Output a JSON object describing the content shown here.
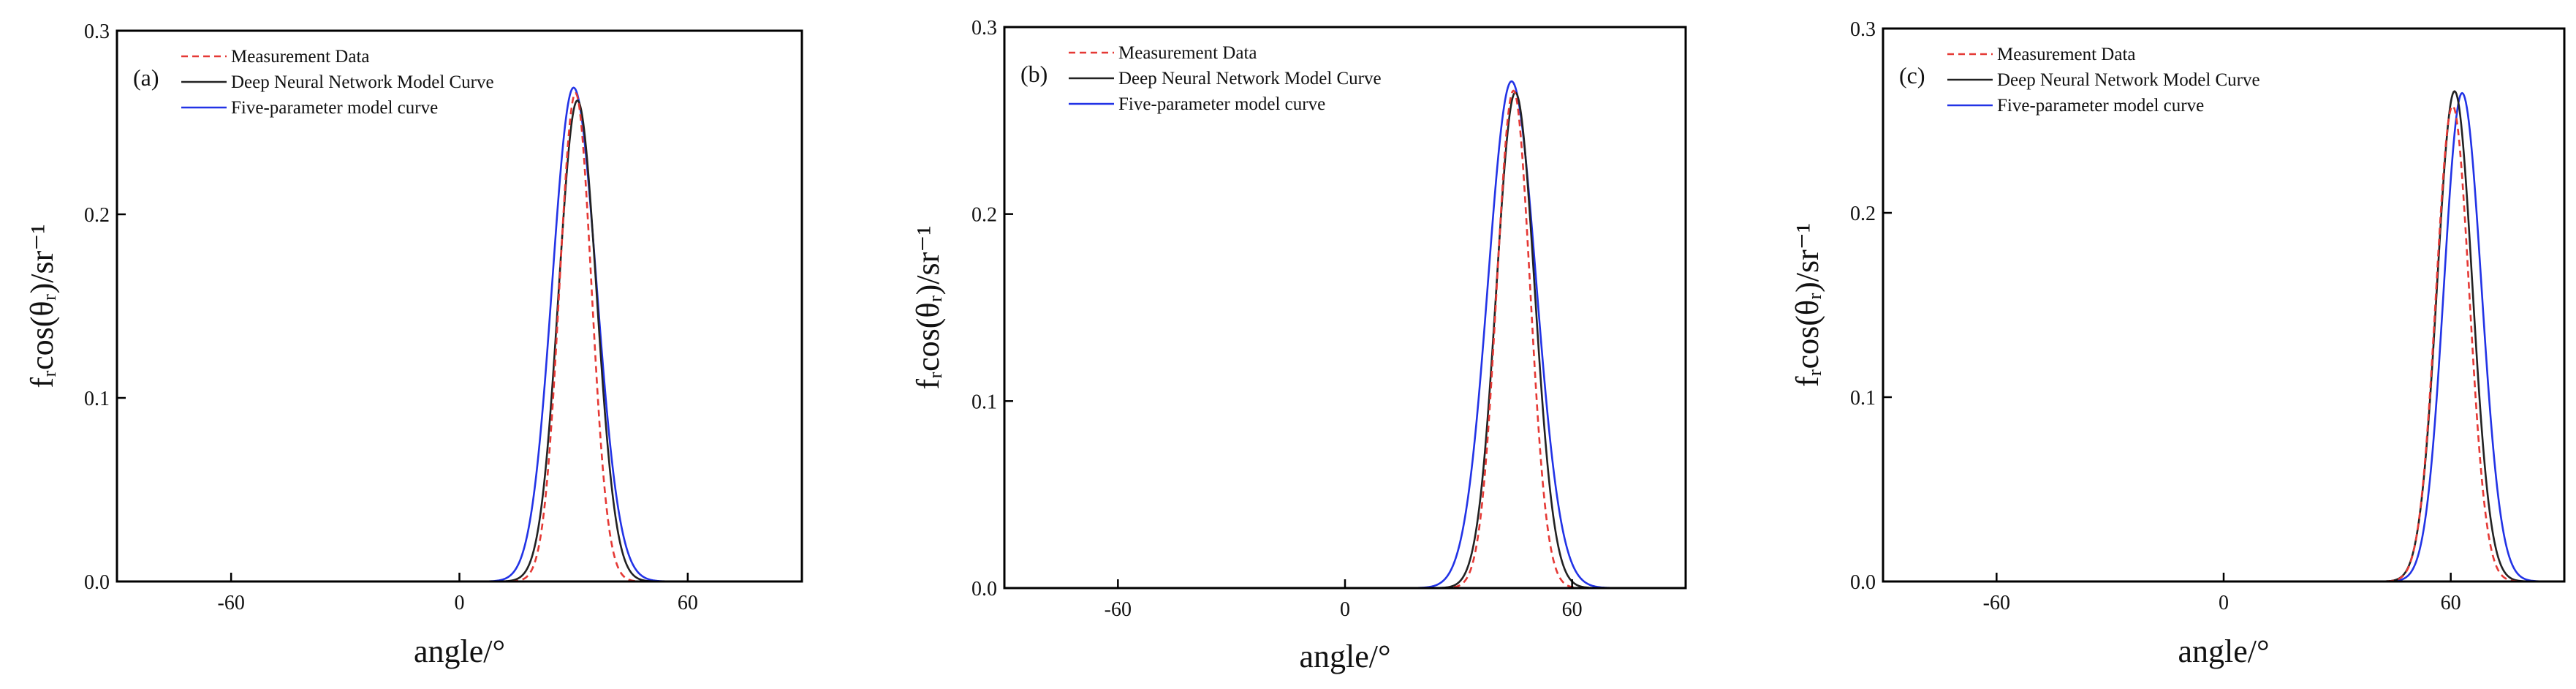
{
  "chart_data": [
    {
      "type": "line",
      "panel_label": "(a)",
      "xlabel": "angle/°",
      "ylabel": "fᵣcos(θᵣ)/sr⁻¹",
      "xlim": [
        -90,
        90
      ],
      "ylim": [
        0,
        0.3
      ],
      "xticks": [
        -60,
        0,
        60
      ],
      "xtick_labels": [
        "-60",
        "0",
        "60"
      ],
      "yticks": [
        0,
        0.1,
        0.2,
        0.3
      ],
      "ytick_labels": [
        "0.0",
        "0.1",
        "0.2",
        "0.3"
      ],
      "legend_position": "top-left",
      "series": [
        {
          "name": "Measurement Data",
          "color": "#e53935",
          "dash": "dashed",
          "peak_x": 30.5,
          "peak_y": 0.266,
          "sigma_left": 4.2,
          "sigma_right": 4.2,
          "sample_x": [
            0,
            10,
            20,
            25,
            28,
            30.5,
            33,
            36,
            41,
            51,
            60
          ],
          "sample_y": [
            0.0,
            0.0,
            0.016,
            0.131,
            0.235,
            0.266,
            0.222,
            0.119,
            0.009,
            0.0,
            0.0
          ]
        },
        {
          "name": "Deep Neural Network Model Curve",
          "color": "#222222",
          "dash": "solid",
          "peak_x": 31.0,
          "peak_y": 0.262,
          "sigma_left": 4.9,
          "sigma_right": 5.0,
          "sample_x": [
            0,
            10,
            20,
            25,
            28,
            31,
            34,
            37,
            42,
            51,
            60
          ],
          "sample_y": [
            0.0,
            0.0,
            0.026,
            0.124,
            0.216,
            0.262,
            0.218,
            0.126,
            0.025,
            0.0,
            0.0
          ]
        },
        {
          "name": "Five-parameter model curve",
          "color": "#2233e6",
          "dash": "solid",
          "peak_x": 30.0,
          "peak_y": 0.269,
          "sigma_left": 5.6,
          "sigma_right": 6.0,
          "sample_x": [
            0,
            10,
            20,
            24,
            27,
            30,
            33,
            36,
            42,
            52,
            60
          ],
          "sample_y": [
            0.0,
            0.0,
            0.056,
            0.151,
            0.232,
            0.269,
            0.237,
            0.163,
            0.036,
            0.0,
            0.0
          ]
        }
      ]
    },
    {
      "type": "line",
      "panel_label": "(b)",
      "xlabel": "angle/°",
      "ylabel": "fᵣcos(θᵣ)/sr⁻¹",
      "xlim": [
        -90,
        90
      ],
      "ylim": [
        0,
        0.3
      ],
      "xticks": [
        -60,
        0,
        60
      ],
      "xtick_labels": [
        "-60",
        "0",
        "60"
      ],
      "yticks": [
        0,
        0.1,
        0.2,
        0.3
      ],
      "ytick_labels": [
        "0.0",
        "0.1",
        "0.2",
        "0.3"
      ],
      "legend_position": "top-left",
      "series": [
        {
          "name": "Measurement Data",
          "color": "#e53935",
          "dash": "dashed",
          "peak_x": 44.5,
          "peak_y": 0.266,
          "sigma_left": 4.4,
          "sigma_right": 4.4,
          "sample_x": [
            0,
            20,
            32,
            38,
            42,
            44.5,
            47,
            51,
            57,
            66,
            90
          ],
          "sample_y": [
            0.0,
            0.0,
            0.005,
            0.089,
            0.226,
            0.266,
            0.226,
            0.089,
            0.005,
            0.0,
            0.0
          ]
        },
        {
          "name": "Deep Neural Network Model Curve",
          "color": "#222222",
          "dash": "solid",
          "peak_x": 45.0,
          "peak_y": 0.265,
          "sigma_left": 5.0,
          "sigma_right": 5.1,
          "sample_x": [
            0,
            20,
            32,
            38,
            42,
            45,
            48,
            52,
            58,
            68,
            90
          ],
          "sample_y": [
            0.0,
            0.0,
            0.009,
            0.109,
            0.222,
            0.265,
            0.223,
            0.104,
            0.01,
            0.0,
            0.0
          ]
        },
        {
          "name": "Five-parameter model curve",
          "color": "#2233e6",
          "dash": "solid",
          "peak_x": 44.0,
          "peak_y": 0.271,
          "sigma_left": 6.2,
          "sigma_right": 6.5,
          "sample_x": [
            0,
            20,
            30,
            36,
            41,
            44,
            47,
            52,
            58,
            70,
            90
          ],
          "sample_y": [
            0.0,
            0.001,
            0.021,
            0.117,
            0.241,
            0.271,
            0.243,
            0.127,
            0.026,
            0.0,
            0.0
          ]
        }
      ]
    },
    {
      "type": "line",
      "panel_label": "(c)",
      "xlabel": "angle/°",
      "ylabel": "fᵣcos(θᵣ)/sr⁻¹",
      "xlim": [
        -90,
        90
      ],
      "ylim": [
        0,
        0.3
      ],
      "xticks": [
        -60,
        0,
        60
      ],
      "xtick_labels": [
        "-60",
        "0",
        "60"
      ],
      "yticks": [
        0,
        0.1,
        0.2,
        0.3
      ],
      "ytick_labels": [
        "0.0",
        "0.1",
        "0.2",
        "0.3"
      ],
      "legend_position": "top-left",
      "series": [
        {
          "name": "Measurement Data",
          "color": "#e53935",
          "dash": "dashed",
          "peak_x": 60.5,
          "peak_y": 0.258,
          "sigma_left": 4.4,
          "sigma_right": 4.4,
          "sample_x": [
            30,
            45,
            50,
            55,
            58,
            60.5,
            63,
            66,
            71,
            78,
            90
          ],
          "sample_y": [
            0.0,
            0.001,
            0.014,
            0.118,
            0.22,
            0.258,
            0.22,
            0.118,
            0.014,
            0.0,
            0.0
          ]
        },
        {
          "name": "Deep Neural Network Model Curve",
          "color": "#222222",
          "dash": "solid",
          "peak_x": 61.0,
          "peak_y": 0.266,
          "sigma_left": 4.6,
          "sigma_right": 4.7,
          "sample_x": [
            30,
            45,
            50,
            55,
            58,
            61,
            64,
            67,
            72,
            80,
            90
          ],
          "sample_y": [
            0.0,
            0.002,
            0.025,
            0.113,
            0.215,
            0.266,
            0.216,
            0.117,
            0.022,
            0.0,
            0.0
          ]
        },
        {
          "name": "Five-parameter model curve",
          "color": "#2233e6",
          "dash": "solid",
          "peak_x": 63.0,
          "peak_y": 0.265,
          "sigma_left": 4.8,
          "sigma_right": 5.1,
          "sample_x": [
            30,
            45,
            50,
            55,
            60,
            63,
            66,
            70,
            75,
            82,
            90
          ],
          "sample_y": [
            0.0,
            0.0,
            0.007,
            0.066,
            0.218,
            0.265,
            0.222,
            0.098,
            0.017,
            0.0,
            0.0
          ]
        }
      ]
    }
  ]
}
